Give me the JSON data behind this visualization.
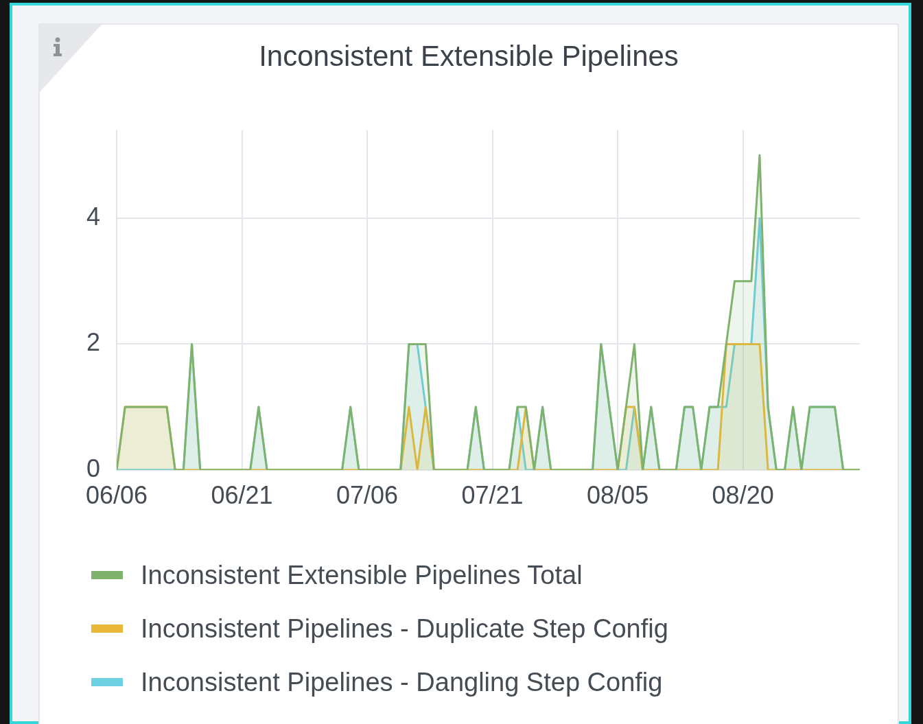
{
  "chart_data": {
    "type": "area",
    "title": "Inconsistent Extensible Pipelines",
    "x": [
      "--06-06",
      "--06-07",
      "--06-08",
      "--06-09",
      "--06-10",
      "--06-11",
      "--06-12",
      "--06-13",
      "--06-14",
      "--06-15",
      "--06-16",
      "--06-17",
      "--06-18",
      "--06-19",
      "--06-20",
      "--06-21",
      "--06-22",
      "--06-23",
      "--06-24",
      "--06-25",
      "--06-26",
      "--06-27",
      "--06-28",
      "--06-29",
      "--06-30",
      "--07-01",
      "--07-02",
      "--07-03",
      "--07-04",
      "--07-05",
      "--07-06",
      "--07-07",
      "--07-08",
      "--07-09",
      "--07-10",
      "--07-11",
      "--07-12",
      "--07-13",
      "--07-14",
      "--07-15",
      "--07-16",
      "--07-17",
      "--07-18",
      "--07-19",
      "--07-20",
      "--07-21",
      "--07-22",
      "--07-23",
      "--07-24",
      "--07-25",
      "--07-26",
      "--07-27",
      "--07-28",
      "--07-29",
      "--07-30",
      "--07-31",
      "--08-01",
      "--08-02",
      "--08-03",
      "--08-04",
      "--08-05",
      "--08-06",
      "--08-07",
      "--08-08",
      "--08-09",
      "--08-10",
      "--08-11",
      "--08-12",
      "--08-13",
      "--08-14",
      "--08-15",
      "--08-16",
      "--08-17",
      "--08-18",
      "--08-19",
      "--08-20",
      "--08-21",
      "--08-22",
      "--08-23",
      "--08-24",
      "--08-25",
      "--08-26",
      "--08-27",
      "--08-28",
      "--08-29",
      "--08-30",
      "--08-31",
      "--09-01",
      "--09-02",
      "--09-03"
    ],
    "series": [
      {
        "name": "Inconsistent Extensible Pipelines Total",
        "color": "#7eb26d",
        "values": [
          0,
          1,
          1,
          1,
          1,
          1,
          1,
          0,
          0,
          2,
          0,
          0,
          0,
          0,
          0,
          0,
          0,
          1,
          0,
          0,
          0,
          0,
          0,
          0,
          0,
          0,
          0,
          0,
          1,
          0,
          0,
          0,
          0,
          0,
          0,
          2,
          2,
          2,
          0,
          0,
          0,
          0,
          0,
          1,
          0,
          0,
          0,
          0,
          1,
          1,
          0,
          1,
          0,
          0,
          0,
          0,
          0,
          0,
          2,
          1,
          0,
          1,
          2,
          0,
          1,
          0,
          0,
          0,
          1,
          1,
          0,
          1,
          1,
          2,
          3,
          3,
          3,
          5,
          1,
          0,
          0,
          1,
          0,
          1,
          1,
          1,
          1,
          0,
          0,
          0
        ]
      },
      {
        "name": "Inconsistent Pipelines - Duplicate Step Config",
        "color": "#eab839",
        "values": [
          0,
          1,
          1,
          1,
          1,
          1,
          1,
          0,
          0,
          0,
          0,
          0,
          0,
          0,
          0,
          0,
          0,
          0,
          0,
          0,
          0,
          0,
          0,
          0,
          0,
          0,
          0,
          0,
          0,
          0,
          0,
          0,
          0,
          0,
          0,
          1,
          0,
          1,
          0,
          0,
          0,
          0,
          0,
          0,
          0,
          0,
          0,
          0,
          0,
          1,
          0,
          0,
          0,
          0,
          0,
          0,
          0,
          0,
          0,
          0,
          0,
          1,
          1,
          0,
          0,
          0,
          0,
          0,
          0,
          0,
          0,
          0,
          0,
          2,
          2,
          2,
          2,
          2,
          0,
          0,
          0,
          0,
          0,
          0,
          0,
          0,
          0,
          0,
          0,
          0
        ]
      },
      {
        "name": "Inconsistent Pipelines - Dangling Step Config",
        "color": "#6ed0e0",
        "values": [
          0,
          0,
          0,
          0,
          0,
          0,
          0,
          0,
          0,
          2,
          0,
          0,
          0,
          0,
          0,
          0,
          0,
          1,
          0,
          0,
          0,
          0,
          0,
          0,
          0,
          0,
          0,
          0,
          1,
          0,
          0,
          0,
          0,
          0,
          0,
          2,
          2,
          1,
          0,
          0,
          0,
          0,
          0,
          1,
          0,
          0,
          0,
          0,
          1,
          0,
          0,
          1,
          0,
          0,
          0,
          0,
          0,
          0,
          2,
          1,
          0,
          0,
          1,
          0,
          1,
          0,
          0,
          0,
          1,
          1,
          0,
          1,
          1,
          1,
          2,
          2,
          2,
          4,
          1,
          0,
          0,
          1,
          0,
          1,
          1,
          1,
          1,
          0,
          0,
          0
        ]
      }
    ],
    "xlim": [
      "--06-06",
      "--09-03"
    ],
    "xticks": [
      {
        "value": "--06-06",
        "label": "06/06"
      },
      {
        "value": "--06-21",
        "label": "06/21"
      },
      {
        "value": "--07-06",
        "label": "07/06"
      },
      {
        "value": "--07-21",
        "label": "07/21"
      },
      {
        "value": "--08-05",
        "label": "08/05"
      },
      {
        "value": "--08-20",
        "label": "08/20"
      }
    ],
    "ylim": [
      0,
      5.4
    ],
    "yticks": [
      0,
      2,
      4
    ],
    "grid": true,
    "legend": "bottom"
  }
}
